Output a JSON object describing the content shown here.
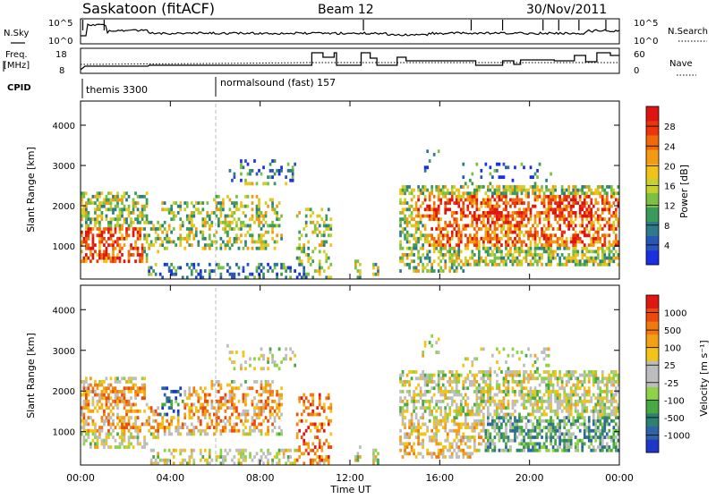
{
  "header": {
    "title": "Saskatoon (fitACF)",
    "beam": "Beam 12",
    "date": "30/Nov/2011"
  },
  "top_panels": {
    "sky": {
      "left_label": "N.Sky",
      "left_ticks": [
        "10^5",
        "10^0"
      ],
      "right_label": "N.Search",
      "right_ticks": [
        "10^5",
        "10^0"
      ]
    },
    "freq": {
      "left_label_1": "Freq.",
      "left_label_2": "[MHz]",
      "left_ticks": [
        "18",
        "8"
      ],
      "right_label": "Nave",
      "right_ticks": [
        "60",
        "0"
      ]
    },
    "cpid": {
      "label": "CPID",
      "programs": [
        {
          "name": "themis 3300",
          "start_hour": 0
        },
        {
          "name": "normalsound (fast) 157",
          "start_hour": 6
        }
      ]
    }
  },
  "chart_data": [
    {
      "type": "heatmap",
      "name": "power",
      "ylabel": "Slant Range [km]",
      "ylim": [
        180,
        4600
      ],
      "yticks": [
        "1000",
        "2000",
        "3000",
        "4000"
      ],
      "xlim": [
        0,
        24
      ],
      "colorbar": {
        "label": "Power [dB]",
        "ticks": [
          "28",
          "24",
          "20",
          "16",
          "12",
          "8",
          "4"
        ],
        "colors": [
          "#1a2fe0",
          "#2a55b8",
          "#2f7a8a",
          "#3a9a5a",
          "#7cc043",
          "#c7d12e",
          "#f1c21b",
          "#f39a12",
          "#f06a0c",
          "#e9360a",
          "#dd1410"
        ]
      }
    },
    {
      "type": "heatmap",
      "name": "velocity",
      "ylabel": "Slant Range [km]",
      "ylim": [
        180,
        4600
      ],
      "yticks": [
        "1000",
        "2000",
        "3000",
        "4000"
      ],
      "xlim": [
        0,
        24
      ],
      "xticks": [
        "00:00",
        "04:00",
        "08:00",
        "12:00",
        "16:00",
        "20:00",
        "00:00"
      ],
      "xlabel": "Time UT",
      "colorbar": {
        "label": "Velocity [m s⁻¹]",
        "ticks": [
          "1000",
          "500",
          "100",
          "25",
          "-25",
          "-100",
          "-500",
          "-1000"
        ],
        "colors": [
          "#2036c8",
          "#2f63a8",
          "#2f8070",
          "#49a844",
          "#8fd24a",
          "#bdbdbd",
          "#bdbdbd",
          "#f2c318",
          "#f2a015",
          "#f07a12",
          "#ea4a0e",
          "#e01812"
        ]
      }
    }
  ]
}
